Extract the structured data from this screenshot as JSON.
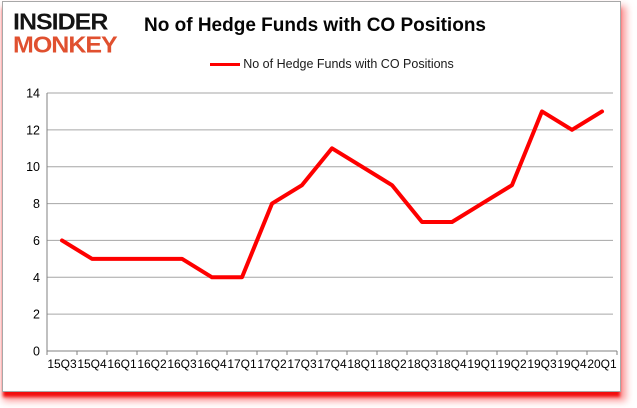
{
  "logo": {
    "line1": "INSIDER",
    "line2": "MONKEY",
    "line1_color": "#141414",
    "line2_color": "#e0502f"
  },
  "header": {
    "title": "No of Hedge Funds with CO Positions"
  },
  "legend": {
    "label": "No of Hedge Funds with CO Positions",
    "color": "#fe0000"
  },
  "colors": {
    "series_red": "#fe0000",
    "gridline": "#a6a6a6",
    "axis": "#808080",
    "label_text": "#000000",
    "card_shadow_red": "#f20d0d"
  },
  "chart_data": {
    "type": "line",
    "title": "No of Hedge Funds with CO Positions",
    "categories": [
      "15Q3",
      "15Q4",
      "16Q1",
      "16Q2",
      "16Q3",
      "16Q4",
      "17Q1",
      "17Q2",
      "17Q3",
      "17Q4",
      "18Q1",
      "18Q2",
      "18Q3",
      "18Q4",
      "19Q1",
      "19Q2",
      "19Q3",
      "19Q4",
      "20Q1"
    ],
    "series": [
      {
        "name": "No of Hedge Funds with CO Positions",
        "color": "#fe0000",
        "values": [
          6,
          5,
          5,
          5,
          5,
          4,
          4,
          8,
          9,
          11,
          10,
          9,
          7,
          7,
          8,
          9,
          13,
          12,
          13
        ]
      }
    ],
    "xlabel": "",
    "ylabel": "",
    "ylim": [
      0,
      14
    ],
    "yticks": [
      0,
      2,
      4,
      6,
      8,
      10,
      12,
      14
    ],
    "grid": true,
    "legend_position": "top-center"
  }
}
